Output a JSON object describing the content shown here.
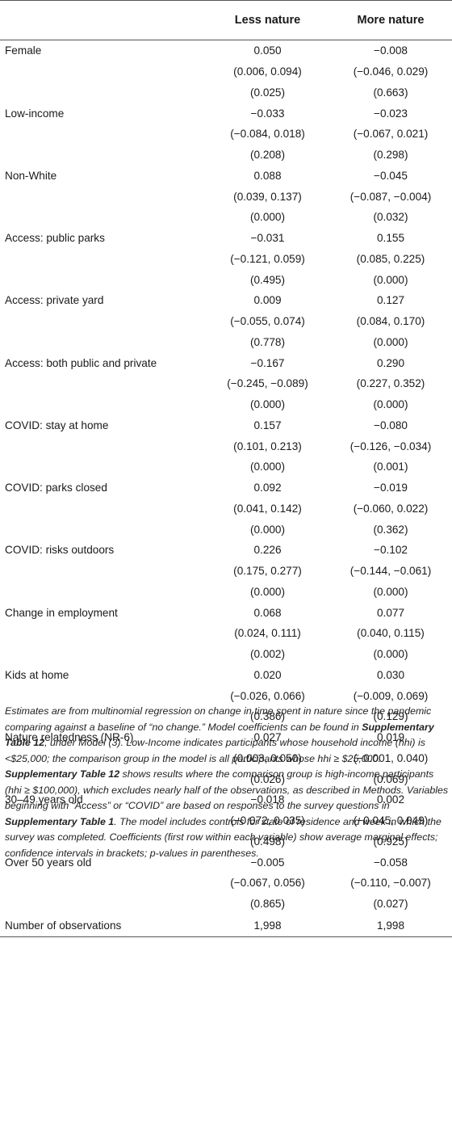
{
  "table": {
    "header": {
      "label": "",
      "less": "Less nature",
      "more": "More nature"
    },
    "rows": [
      {
        "label": "Female",
        "less": [
          "0.050",
          "(0.006, 0.094)",
          "(0.025)"
        ],
        "more": [
          "−0.008",
          "(−0.046, 0.029)",
          "(0.663)"
        ]
      },
      {
        "label": "Low-income",
        "less": [
          "−0.033",
          "(−0.084, 0.018)",
          "(0.208)"
        ],
        "more": [
          "−0.023",
          "(−0.067, 0.021)",
          "(0.298)"
        ]
      },
      {
        "label": "Non-White",
        "less": [
          "0.088",
          "(0.039, 0.137)",
          "(0.000)"
        ],
        "more": [
          "−0.045",
          "(−0.087, −0.004)",
          "(0.032)"
        ]
      },
      {
        "label": "Access: public parks",
        "less": [
          "−0.031",
          "(−0.121, 0.059)",
          "(0.495)"
        ],
        "more": [
          "0.155",
          "(0.085, 0.225)",
          "(0.000)"
        ]
      },
      {
        "label": "Access: private yard",
        "less": [
          "0.009",
          "(−0.055, 0.074)",
          "(0.778)"
        ],
        "more": [
          "0.127",
          "(0.084, 0.170)",
          "(0.000)"
        ]
      },
      {
        "label": "Access: both public and private",
        "less": [
          "−0.167",
          "(−0.245, −0.089)",
          "(0.000)"
        ],
        "more": [
          "0.290",
          "(0.227, 0.352)",
          "(0.000)"
        ]
      },
      {
        "label": "COVID: stay at home",
        "less": [
          "0.157",
          "(0.101, 0.213)",
          "(0.000)"
        ],
        "more": [
          "−0.080",
          "(−0.126, −0.034)",
          "(0.001)"
        ]
      },
      {
        "label": "COVID: parks closed",
        "less": [
          "0.092",
          "(0.041, 0.142)",
          "(0.000)"
        ],
        "more": [
          "−0.019",
          "(−0.060, 0.022)",
          "(0.362)"
        ]
      },
      {
        "label": "COVID: risks outdoors",
        "less": [
          "0.226",
          "(0.175, 0.277)",
          "(0.000)"
        ],
        "more": [
          "−0.102",
          "(−0.144, −0.061)",
          "(0.000)"
        ]
      },
      {
        "label": "Change in employment",
        "less": [
          "0.068",
          "(0.024, 0.111)",
          "(0.002)"
        ],
        "more": [
          "0.077",
          "(0.040, 0.115)",
          "(0.000)"
        ]
      },
      {
        "label": "Kids at home",
        "less": [
          "0.020",
          "(−0.026, 0.066)",
          "(0.386)"
        ],
        "more": [
          "0.030",
          "(−0.009, 0.069)",
          "(0.129)"
        ]
      },
      {
        "label": "Nature relatedness (NR-6)",
        "less": [
          "0.027",
          "(0.003, 0.050)",
          "(0.026)"
        ],
        "more": [
          "0.019",
          "(−0.001, 0.040)",
          "(0.069)"
        ]
      },
      {
        "label": "30–49 years old",
        "less": [
          "−0.018",
          "(−0.072, 0.035)",
          "(0.498)"
        ],
        "more": [
          "0.002",
          "(−0.045, 0.049)",
          "(0.925)"
        ]
      },
      {
        "label": "Over 50 years old",
        "less": [
          "−0.005",
          "(−0.067, 0.056)",
          "(0.865)"
        ],
        "more": [
          "−0.058",
          "(−0.110, −0.007)",
          "(0.027)"
        ]
      }
    ],
    "observations": {
      "label": "Number of observations",
      "less": "1,998",
      "more": "1,998"
    }
  },
  "note": [
    {
      "t": "Estimates are from multinomial regression on change in time spent in nature since the pandemic comparing against a baseline of “no change.” Model coefficients can be found in "
    },
    {
      "t": "Supplementary Table 12",
      "b": true
    },
    {
      "t": ", under Model (3). Low-Income indicates participants whose household income (hhi) is <$25,000; the comparison group in the model is all participants whose hhi ≥ $25,000. "
    },
    {
      "t": "Supplementary Table 12",
      "b": true
    },
    {
      "t": " shows results where the comparison group is high-income participants (hhi ≥ $100,000), which excludes nearly half of the observations, as described in Methods. Variables beginning with “Access” or “COVID” are based on responses to the survey questions in "
    },
    {
      "t": "Supplementary Table 1",
      "b": true
    },
    {
      "t": ". The model includes controls for state of residence and week in which the survey was completed. Coefficients (first row within each variable) show average marginal effects; confidence intervals in brackets; p-values in parentheses."
    }
  ]
}
